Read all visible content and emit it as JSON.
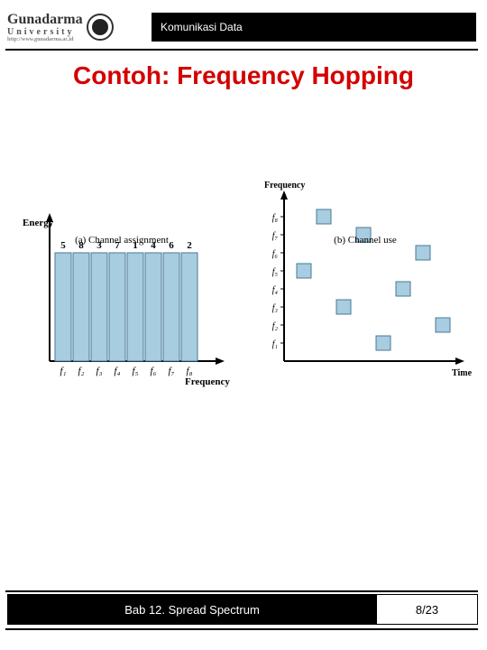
{
  "header": {
    "logo_main": "Gunadarma",
    "logo_sub": "University",
    "logo_tiny": "http://www.gunadarma.ac.id",
    "strip_text": "Komunikasi Data"
  },
  "title": "Contoh: Frequency Hopping",
  "chart_a": {
    "y_label": "Energy",
    "x_label": "Frequency",
    "top_numbers": [
      "5",
      "8",
      "3",
      "7",
      "1",
      "4",
      "6",
      "2"
    ],
    "bottom_labels": [
      "f₁",
      "f₂",
      "f₃",
      "f₄",
      "f₅",
      "f₆",
      "f₇",
      "f₈"
    ],
    "bar_fill": "#a8cce0",
    "bar_stroke": "#4a7a95",
    "axis_color": "#000000",
    "caption": "(a) Channel assignment"
  },
  "chart_b": {
    "y_label": "Frequency",
    "x_label": "Time",
    "y_ticks": [
      "f₁",
      "f₂",
      "f₃",
      "f₄",
      "f₅",
      "f₆",
      "f₇",
      "f₈"
    ],
    "points": [
      {
        "t": 1,
        "f": 5
      },
      {
        "t": 2,
        "f": 8
      },
      {
        "t": 3,
        "f": 3
      },
      {
        "t": 4,
        "f": 7
      },
      {
        "t": 5,
        "f": 1
      },
      {
        "t": 6,
        "f": 4
      },
      {
        "t": 7,
        "f": 6
      },
      {
        "t": 8,
        "f": 2
      }
    ],
    "box_fill": "#a8cce0",
    "box_stroke": "#4a7a95",
    "box_size": 16,
    "axis_color": "#000000",
    "caption": "(b) Channel use"
  },
  "footer": {
    "left": "Bab 12. Spread Spectrum",
    "right": "8/23"
  }
}
